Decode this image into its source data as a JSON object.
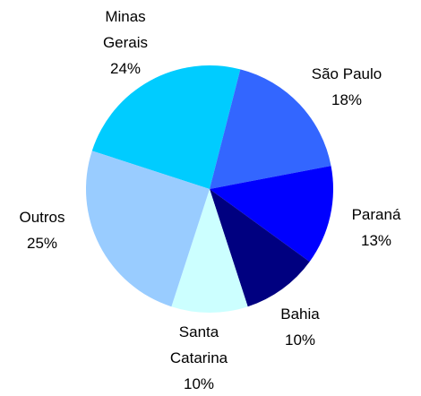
{
  "chart_data": {
    "type": "pie",
    "categories": [
      "Minas Gerais",
      "São Paulo",
      "Paraná",
      "Bahia",
      "Santa Catarina",
      "Outros"
    ],
    "values": [
      24,
      18,
      13,
      10,
      10,
      25
    ],
    "value_labels": [
      "24%",
      "18%",
      "13%",
      "10%",
      "10%",
      "25%"
    ],
    "colors": [
      "#00ccff",
      "#3366ff",
      "#0000ff",
      "#000080",
      "#ccffff",
      "#99ccff"
    ]
  }
}
